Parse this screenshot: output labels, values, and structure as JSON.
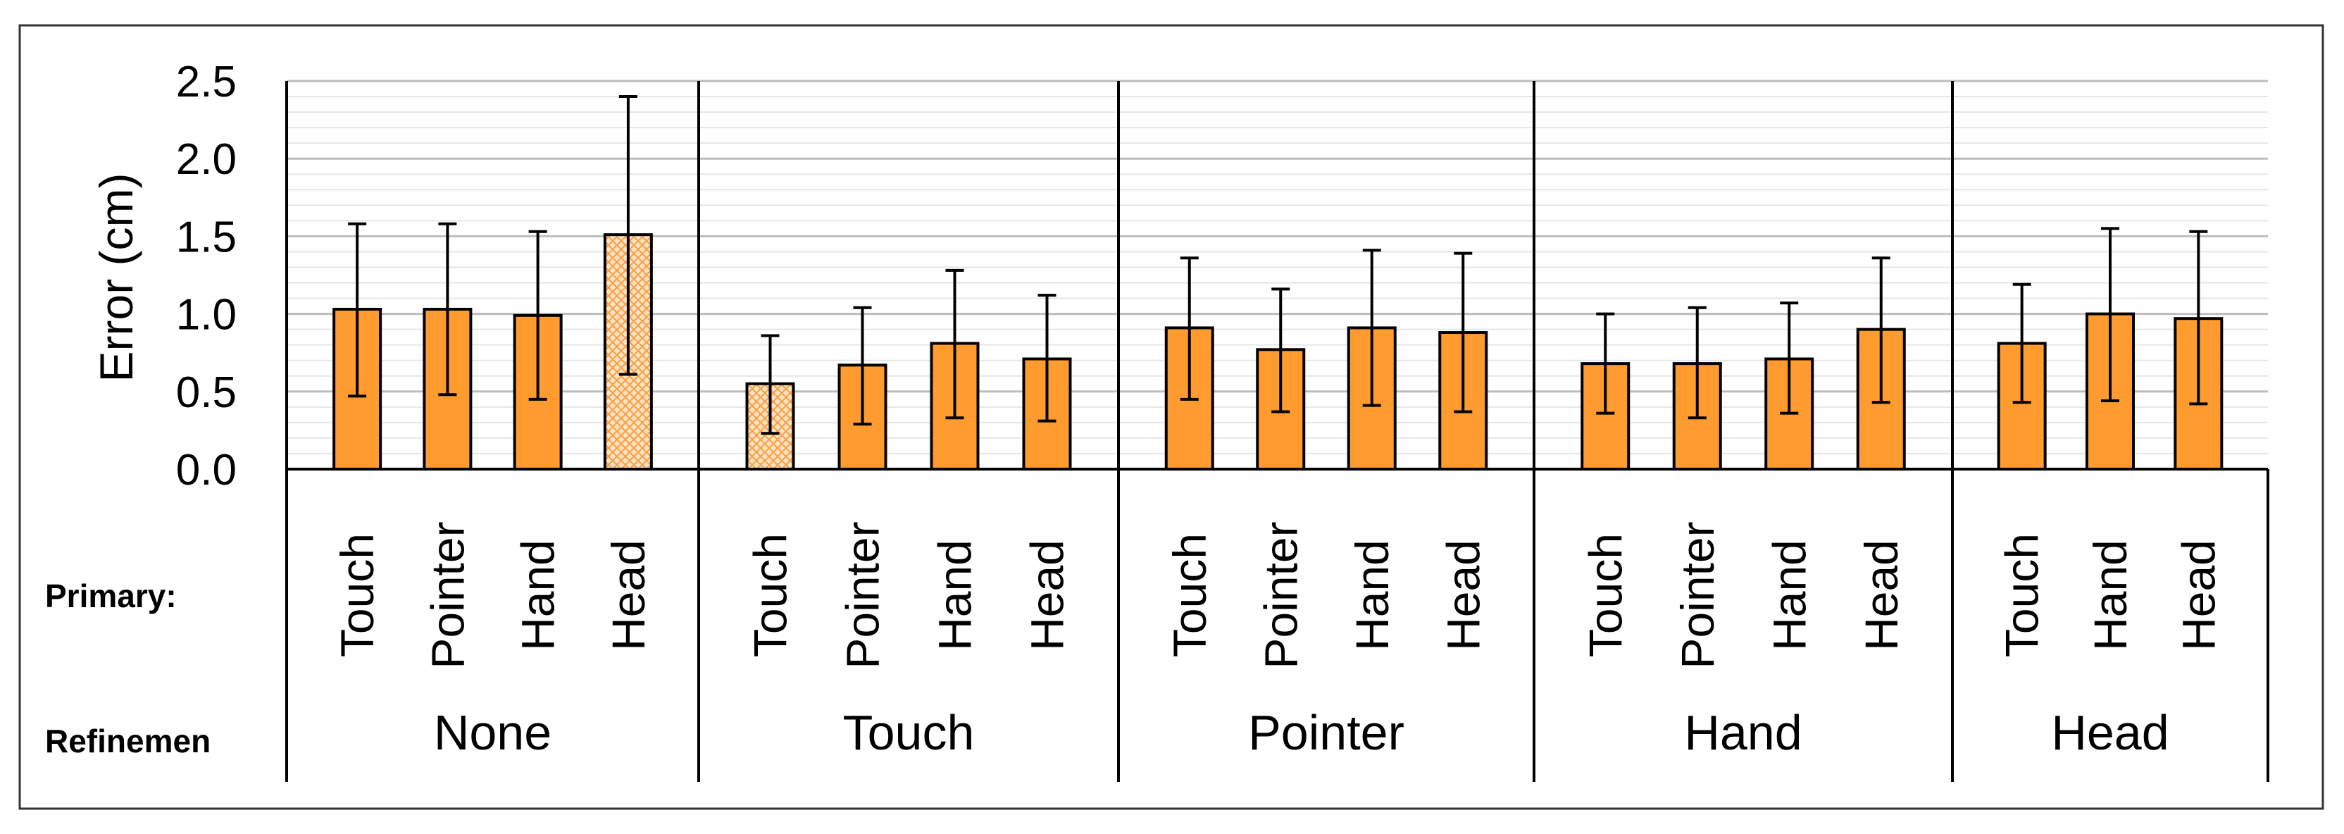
{
  "chart_data": {
    "type": "bar",
    "ylabel": "Error (cm)",
    "ylim": [
      0,
      2.5
    ],
    "yticks": [
      "0.0",
      "0.5",
      "1.0",
      "1.5",
      "2.0",
      "2.5"
    ],
    "grid": true,
    "row_labels": {
      "primary": "Primary:",
      "refinement": "Refinemen"
    },
    "bar_color": "#FF9B2F",
    "hatched_color": "#FFC98C",
    "groups": [
      {
        "name": "None",
        "bars": [
          {
            "category": "Touch",
            "value": 1.03,
            "err_low": 0.47,
            "err_high": 1.58,
            "hatched": false
          },
          {
            "category": "Pointer",
            "value": 1.03,
            "err_low": 0.48,
            "err_high": 1.58,
            "hatched": false
          },
          {
            "category": "Hand",
            "value": 0.99,
            "err_low": 0.45,
            "err_high": 1.53,
            "hatched": false
          },
          {
            "category": "Head",
            "value": 1.51,
            "err_low": 0.61,
            "err_high": 2.4,
            "hatched": true
          }
        ]
      },
      {
        "name": "Touch",
        "bars": [
          {
            "category": "Touch",
            "value": 0.55,
            "err_low": 0.23,
            "err_high": 0.86,
            "hatched": true
          },
          {
            "category": "Pointer",
            "value": 0.67,
            "err_low": 0.29,
            "err_high": 1.04,
            "hatched": false
          },
          {
            "category": "Hand",
            "value": 0.81,
            "err_low": 0.33,
            "err_high": 1.28,
            "hatched": false
          },
          {
            "category": "Head",
            "value": 0.71,
            "err_low": 0.31,
            "err_high": 1.12,
            "hatched": false
          }
        ]
      },
      {
        "name": "Pointer",
        "bars": [
          {
            "category": "Touch",
            "value": 0.91,
            "err_low": 0.45,
            "err_high": 1.36,
            "hatched": false
          },
          {
            "category": "Pointer",
            "value": 0.77,
            "err_low": 0.37,
            "err_high": 1.16,
            "hatched": false
          },
          {
            "category": "Hand",
            "value": 0.91,
            "err_low": 0.41,
            "err_high": 1.41,
            "hatched": false
          },
          {
            "category": "Head",
            "value": 0.88,
            "err_low": 0.37,
            "err_high": 1.39,
            "hatched": false
          }
        ]
      },
      {
        "name": "Hand",
        "bars": [
          {
            "category": "Touch",
            "value": 0.68,
            "err_low": 0.36,
            "err_high": 1.0,
            "hatched": false
          },
          {
            "category": "Pointer",
            "value": 0.68,
            "err_low": 0.33,
            "err_high": 1.04,
            "hatched": false
          },
          {
            "category": "Hand",
            "value": 0.71,
            "err_low": 0.36,
            "err_high": 1.07,
            "hatched": false
          },
          {
            "category": "Head",
            "value": 0.9,
            "err_low": 0.43,
            "err_high": 1.36,
            "hatched": false
          }
        ]
      },
      {
        "name": "Head",
        "bars": [
          {
            "category": "Touch",
            "value": 0.81,
            "err_low": 0.43,
            "err_high": 1.19,
            "hatched": false
          },
          {
            "category": "Hand",
            "value": 1.0,
            "err_low": 0.44,
            "err_high": 1.55,
            "hatched": false
          },
          {
            "category": "Head",
            "value": 0.97,
            "err_low": 0.42,
            "err_high": 1.53,
            "hatched": false
          }
        ]
      }
    ]
  }
}
